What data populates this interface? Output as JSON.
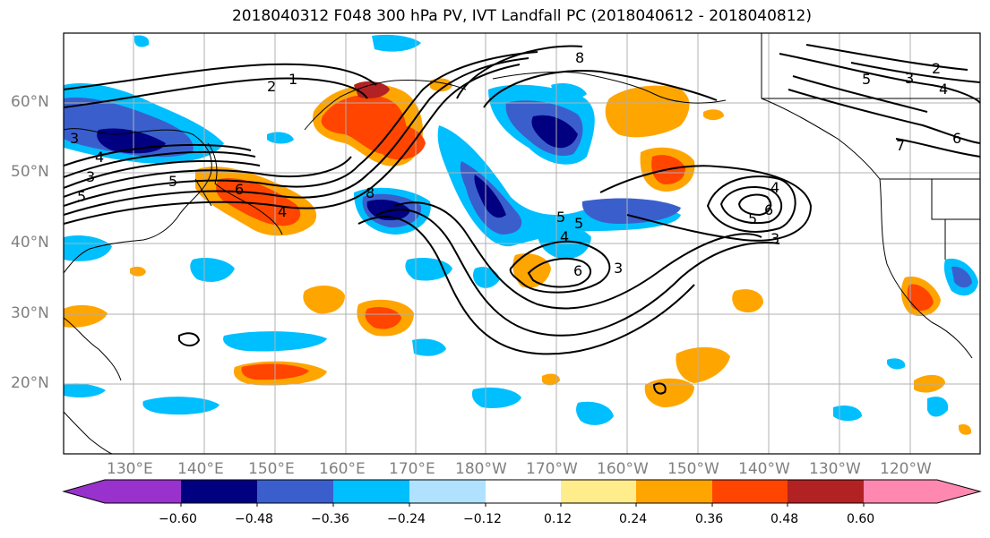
{
  "title": "2018040312 F048 300 hPa PV, IVT Landfall PC (2018040612 - 2018040812)",
  "lat_labels": [
    "60°N",
    "50°N",
    "40°N",
    "30°N",
    "20°N"
  ],
  "lon_labels": [
    "130°E",
    "140°E",
    "150°E",
    "160°E",
    "170°E",
    "180°W",
    "170°W",
    "160°W",
    "150°W",
    "140°W",
    "130°W",
    "120°W"
  ],
  "contour_labels": [
    "1",
    "2",
    "3",
    "4",
    "5",
    "6",
    "8",
    "4",
    "5",
    "6",
    "3",
    "3",
    "5",
    "4",
    "5",
    "6",
    "2",
    "3",
    "4",
    "5",
    "6",
    "7",
    "8",
    "5",
    "3",
    "4"
  ],
  "colorbar": {
    "colors": [
      "#9932cc",
      "#000080",
      "#3a5fcd",
      "#00bfff",
      "#b0e2ff",
      "#ffffff",
      "#ffec8b",
      "#ffa500",
      "#ff4500",
      "#b22222",
      "#ff88b0"
    ],
    "ticks": [
      "−0.60",
      "−0.48",
      "−0.36",
      "−0.24",
      "−0.12",
      "0.12",
      "0.24",
      "0.36",
      "0.48",
      "0.60"
    ]
  }
}
